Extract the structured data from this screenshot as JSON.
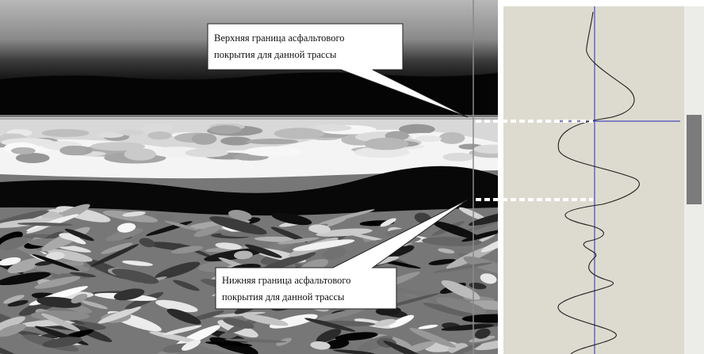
{
  "callouts": [
    {
      "lines": [
        "Верхняя граница асфальтового",
        "покрытия для данной трассы"
      ]
    },
    {
      "lines": [
        "Нижняя граница асфальтового",
        "покрытия для данной трассы"
      ]
    }
  ]
}
